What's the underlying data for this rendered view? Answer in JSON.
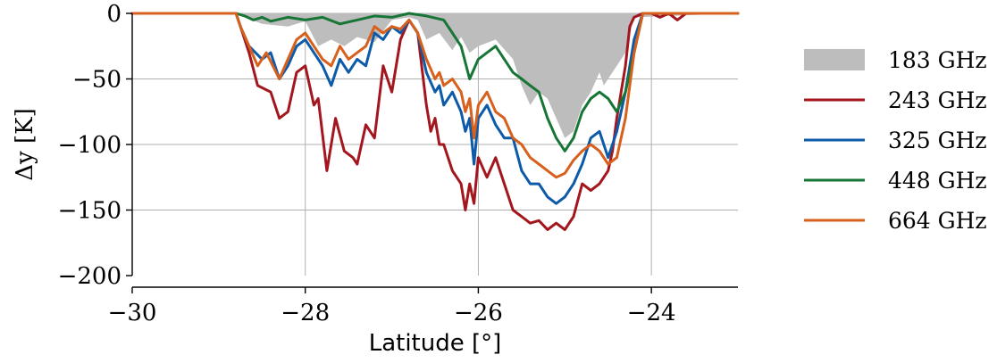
{
  "chart_data": {
    "type": "line",
    "title": "",
    "xlabel": "Latitude [°]",
    "ylabel": "Δy [K]",
    "xlim": [
      -30,
      -23
    ],
    "ylim": [
      -200,
      0
    ],
    "xticks": [
      -30,
      -28,
      -26,
      -24
    ],
    "yticks": [
      0,
      -50,
      -100,
      -150,
      -200
    ],
    "xtick_labels": [
      "−30",
      "−28",
      "−26",
      "−24"
    ],
    "ytick_labels": [
      "0",
      "−50",
      "−100",
      "−150",
      "−200"
    ],
    "grid": true,
    "legend_position": "right, outside",
    "series": [
      {
        "name": "183 GHz",
        "style": "area",
        "color": "#bdbdbd",
        "x": [
          -30,
          -28.8,
          -28.7,
          -28.5,
          -28.2,
          -28.0,
          -27.85,
          -27.7,
          -27.55,
          -27.4,
          -27.2,
          -27.0,
          -26.8,
          -26.7,
          -26.6,
          -26.45,
          -26.3,
          -26.2,
          -26.1,
          -26.0,
          -25.8,
          -25.6,
          -25.5,
          -25.4,
          -25.3,
          -25.2,
          -25.1,
          -25.0,
          -24.9,
          -24.8,
          -24.7,
          -24.6,
          -24.55,
          -24.5,
          -24.4,
          -24.3,
          -24.2,
          -23.0
        ],
        "y": [
          0,
          0,
          -3,
          -8,
          -10,
          -6,
          -25,
          -20,
          -25,
          -18,
          -22,
          -5,
          -3,
          -5,
          -20,
          -15,
          -28,
          -18,
          -30,
          -25,
          -20,
          -35,
          -55,
          -70,
          -60,
          -65,
          -80,
          -95,
          -90,
          -70,
          -60,
          -45,
          -55,
          -50,
          -40,
          -30,
          -3,
          0
        ]
      },
      {
        "name": "243 GHz",
        "color": "#a3161d",
        "x": [
          -30,
          -28.8,
          -28.75,
          -28.65,
          -28.55,
          -28.4,
          -28.3,
          -28.2,
          -28.1,
          -28.0,
          -27.9,
          -27.85,
          -27.75,
          -27.65,
          -27.55,
          -27.45,
          -27.4,
          -27.3,
          -27.2,
          -27.1,
          -27.0,
          -26.9,
          -26.8,
          -26.7,
          -26.6,
          -26.55,
          -26.5,
          -26.45,
          -26.4,
          -26.3,
          -26.2,
          -26.15,
          -26.1,
          -26.05,
          -26.0,
          -25.9,
          -25.8,
          -25.7,
          -25.6,
          -25.5,
          -25.4,
          -25.3,
          -25.2,
          -25.1,
          -25.0,
          -24.9,
          -24.8,
          -24.7,
          -24.6,
          -24.5,
          -24.45,
          -24.4,
          -24.3,
          -24.25,
          -24.2,
          -24.1,
          -24.0,
          -23.9,
          -23.8,
          -23.7,
          -23.6,
          -23.0
        ],
        "y": [
          0,
          0,
          -10,
          -30,
          -55,
          -60,
          -80,
          -75,
          -45,
          -40,
          -70,
          -65,
          -120,
          -80,
          -105,
          -110,
          -115,
          -85,
          -95,
          -40,
          -60,
          -20,
          -5,
          -15,
          -70,
          -90,
          -80,
          -100,
          -100,
          -120,
          -130,
          -150,
          -130,
          -145,
          -110,
          -125,
          -110,
          -130,
          -150,
          -155,
          -160,
          -158,
          -165,
          -160,
          -165,
          -155,
          -130,
          -135,
          -130,
          -120,
          -105,
          -80,
          -40,
          -10,
          -3,
          0,
          0,
          -3,
          0,
          -5,
          0,
          0
        ]
      },
      {
        "name": "325 GHz",
        "color": "#0c5aa8",
        "x": [
          -30,
          -28.8,
          -28.75,
          -28.65,
          -28.5,
          -28.4,
          -28.3,
          -28.2,
          -28.1,
          -28.0,
          -27.9,
          -27.8,
          -27.7,
          -27.6,
          -27.5,
          -27.4,
          -27.3,
          -27.2,
          -27.1,
          -27.0,
          -26.9,
          -26.8,
          -26.7,
          -26.6,
          -26.5,
          -26.45,
          -26.4,
          -26.3,
          -26.2,
          -26.15,
          -26.1,
          -26.05,
          -26.0,
          -25.9,
          -25.8,
          -25.7,
          -25.6,
          -25.5,
          -25.4,
          -25.3,
          -25.2,
          -25.1,
          -25.0,
          -24.9,
          -24.8,
          -24.7,
          -24.6,
          -24.5,
          -24.4,
          -24.3,
          -24.2,
          -24.1,
          -23.0
        ],
        "y": [
          0,
          0,
          -10,
          -25,
          -35,
          -30,
          -50,
          -40,
          -25,
          -20,
          -30,
          -40,
          -55,
          -35,
          -45,
          -35,
          -40,
          -15,
          -20,
          -10,
          -15,
          -5,
          -15,
          -45,
          -60,
          -55,
          -70,
          -60,
          -75,
          -90,
          -80,
          -115,
          -80,
          -70,
          -85,
          -95,
          -95,
          -120,
          -130,
          -130,
          -140,
          -145,
          -140,
          -130,
          -115,
          -95,
          -90,
          -110,
          -90,
          -60,
          -20,
          0,
          0
        ]
      },
      {
        "name": "448 GHz",
        "color": "#177535",
        "x": [
          -30,
          -28.8,
          -28.7,
          -28.6,
          -28.5,
          -28.4,
          -28.2,
          -28.0,
          -27.8,
          -27.6,
          -27.4,
          -27.2,
          -27.0,
          -26.8,
          -26.6,
          -26.4,
          -26.3,
          -26.2,
          -26.1,
          -26.0,
          -25.9,
          -25.8,
          -25.7,
          -25.6,
          -25.5,
          -25.4,
          -25.3,
          -25.2,
          -25.1,
          -25.0,
          -24.9,
          -24.8,
          -24.7,
          -24.6,
          -24.5,
          -24.4,
          -24.3,
          -24.2,
          -24.1,
          -23.0
        ],
        "y": [
          0,
          0,
          -2,
          -5,
          -3,
          -6,
          -3,
          -5,
          -3,
          -8,
          -5,
          -2,
          -3,
          0,
          -2,
          -5,
          -15,
          -25,
          -50,
          -35,
          -30,
          -25,
          -35,
          -45,
          -50,
          -55,
          -60,
          -80,
          -95,
          -105,
          -95,
          -75,
          -65,
          -60,
          -65,
          -75,
          -60,
          -30,
          0,
          0
        ]
      },
      {
        "name": "664 GHz",
        "color": "#d6601c",
        "x": [
          -30,
          -28.8,
          -28.75,
          -28.65,
          -28.55,
          -28.45,
          -28.3,
          -28.2,
          -28.1,
          -28.0,
          -27.9,
          -27.8,
          -27.7,
          -27.6,
          -27.5,
          -27.4,
          -27.3,
          -27.2,
          -27.1,
          -27.0,
          -26.9,
          -26.8,
          -26.7,
          -26.6,
          -26.5,
          -26.45,
          -26.4,
          -26.3,
          -26.2,
          -26.15,
          -26.1,
          -26.05,
          -26.0,
          -25.9,
          -25.8,
          -25.7,
          -25.6,
          -25.5,
          -25.4,
          -25.3,
          -25.2,
          -25.1,
          -25.0,
          -24.9,
          -24.8,
          -24.7,
          -24.6,
          -24.5,
          -24.4,
          -24.3,
          -24.2,
          -24.1,
          -23.0
        ],
        "y": [
          0,
          0,
          -10,
          -25,
          -40,
          -30,
          -50,
          -35,
          -20,
          -15,
          -25,
          -35,
          -40,
          -25,
          -35,
          -30,
          -25,
          -10,
          -15,
          -10,
          -12,
          -5,
          -15,
          -35,
          -50,
          -45,
          -55,
          -50,
          -60,
          -75,
          -65,
          -95,
          -70,
          -60,
          -75,
          -80,
          -95,
          -100,
          -110,
          -115,
          -120,
          -125,
          -122,
          -112,
          -105,
          -100,
          -105,
          -115,
          -110,
          -80,
          -30,
          0,
          0
        ]
      }
    ]
  }
}
